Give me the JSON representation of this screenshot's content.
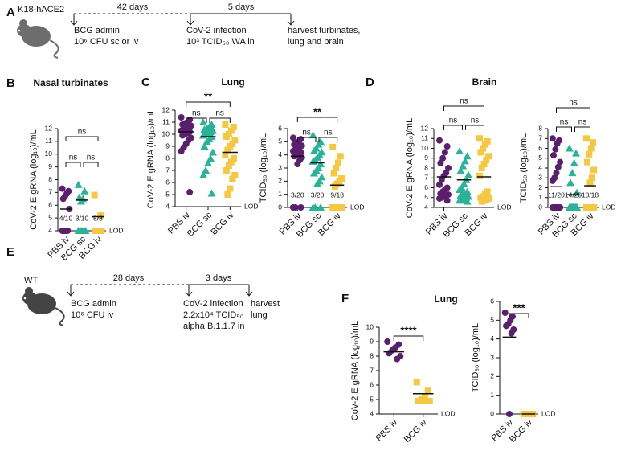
{
  "panel_letters": [
    "A",
    "B",
    "C",
    "D",
    "E",
    "F"
  ],
  "panel_titles": [
    "Nasal turbinates",
    "Lung",
    "Brain",
    "Lung"
  ],
  "timeline_a": {
    "strain": "K18-hACE2",
    "interval_1": "42 days",
    "interval_2": "5 days",
    "step_1": [
      "BCG admin",
      "10⁶ CFU sc or iv"
    ],
    "step_2": [
      "CoV-2 infection",
      "10³ TCID₅₀ WA in"
    ],
    "step_3": [
      "harvest turbinates,",
      "lung and brain"
    ]
  },
  "timeline_e": {
    "strain": "WT",
    "interval_1": "28 days",
    "interval_2": "3 days",
    "step_1": [
      "BCG admin",
      "10⁶ CFU iv"
    ],
    "step_2": [
      "CoV-2 infection",
      "2.2x10⁴ TCID₅₀",
      "alpha B.1.1.7 in"
    ],
    "step_3": [
      "harvest",
      "lung"
    ]
  },
  "chart_data": [
    {
      "type": "dot",
      "y_label": "CoV-2 E gRNA (log₁₀)/mL",
      "ylim": [
        4,
        12
      ],
      "yticks": [
        4,
        5,
        6,
        7,
        8,
        9,
        10,
        11,
        12
      ],
      "categories": [
        "PBS iv",
        "BCG sc",
        "BCG iv"
      ],
      "lod_label": "LOD",
      "significance": [
        "ns",
        "ns",
        "ns"
      ],
      "count_labels": [
        "4/10",
        "3/10",
        "5/8"
      ],
      "groups": [
        {
          "color": "#5a1f6e",
          "marker": "circle",
          "mean": 5.7,
          "values": [
            7.3,
            7.1,
            6.9,
            6.7,
            6.5,
            5.7,
            4,
            4,
            4,
            4
          ]
        },
        {
          "color": "#2bb39a",
          "marker": "triangle",
          "mean": 6.4,
          "values": [
            7.6,
            7.1,
            6.5,
            6.3,
            6.6,
            4,
            4,
            4,
            4,
            4
          ]
        },
        {
          "color": "#f6c842",
          "marker": "square",
          "mean": 5.1,
          "values": [
            6.8,
            5.2,
            4,
            4,
            4,
            4,
            4,
            4
          ]
        }
      ]
    },
    {
      "type": "dot",
      "y_label": "CoV-2 E gRNA (log₁₀)/mL",
      "ylim": [
        4,
        12
      ],
      "yticks": [
        4,
        5,
        6,
        7,
        8,
        9,
        10,
        11,
        12
      ],
      "categories": [
        "PBS iv",
        "BCG sc",
        "BCG iv"
      ],
      "lod_label": "LOD",
      "significance": [
        "**",
        "ns",
        "ns"
      ],
      "groups": [
        {
          "color": "#5a1f6e",
          "marker": "circle",
          "mean": 10.2,
          "values": [
            11.4,
            11.2,
            11.0,
            10.9,
            10.8,
            10.7,
            10.6,
            10.5,
            10.4,
            10.3,
            10.2,
            10.1,
            10.0,
            9.9,
            9.7,
            9.5,
            9.2,
            8.9,
            8.6,
            5.2
          ]
        },
        {
          "color": "#2bb39a",
          "marker": "triangle",
          "mean": 9.8,
          "values": [
            11.0,
            10.8,
            10.6,
            10.5,
            10.4,
            10.3,
            10.2,
            10.1,
            10.0,
            9.9,
            9.8,
            9.6,
            9.4,
            9.0,
            8.5,
            8.0,
            7.6,
            7.0,
            6.6,
            5.1
          ]
        },
        {
          "color": "#f6c842",
          "marker": "square",
          "mean": 8.5,
          "values": [
            10.8,
            10.6,
            10.3,
            10.0,
            9.8,
            9.5,
            9.2,
            9.0,
            8.7,
            8.3,
            8.0,
            7.7,
            7.4,
            7.0,
            6.6,
            6.3,
            5.5,
            5.0
          ]
        }
      ]
    },
    {
      "type": "dot",
      "y_label": "TCID₅₀ (log₁₀)/mL",
      "ylim": [
        0,
        6
      ],
      "yticks": [
        0,
        1,
        2,
        3,
        4,
        5,
        6
      ],
      "categories": [
        "PBS iv",
        "BCG sc",
        "BCG iv"
      ],
      "lod_label": "LOD",
      "significance": [
        "**",
        "ns",
        "ns"
      ],
      "count_labels": [
        "3/20",
        "3/20",
        "9/18"
      ],
      "groups": [
        {
          "color": "#5a1f6e",
          "marker": "circle",
          "mean": 3.9,
          "values": [
            5.3,
            5.2,
            5.0,
            4.9,
            4.8,
            4.7,
            4.6,
            4.5,
            4.4,
            4.3,
            4.2,
            4.1,
            4.0,
            3.9,
            3.8,
            3.6,
            3.3,
            0,
            0,
            0
          ]
        },
        {
          "color": "#2bb39a",
          "marker": "triangle",
          "mean": 3.4,
          "values": [
            5.5,
            5.0,
            4.8,
            4.5,
            4.3,
            4.2,
            4.0,
            3.8,
            3.6,
            3.5,
            3.3,
            3.0,
            2.8,
            2.6,
            2.3,
            2.0,
            1.8,
            0,
            0,
            0
          ]
        },
        {
          "color": "#f6c842",
          "marker": "square",
          "mean": 1.7,
          "values": [
            4.6,
            3.9,
            3.4,
            3.0,
            2.6,
            2.2,
            2.0,
            1.8,
            1.6,
            0,
            0,
            0,
            0,
            0,
            0,
            0,
            0,
            0
          ]
        }
      ]
    },
    {
      "type": "dot",
      "y_label": "CoV-2 E gRNA (log₁₀)/mL",
      "ylim": [
        4,
        12
      ],
      "yticks": [
        4,
        5,
        6,
        7,
        8,
        9,
        10,
        11,
        12
      ],
      "categories": [
        "PBS iv",
        "BCG sc",
        "BCG iv"
      ],
      "lod_label": "LOD",
      "significance": [
        "ns",
        "ns",
        "ns"
      ],
      "groups": [
        {
          "color": "#5a1f6e",
          "marker": "circle",
          "mean": 7.1,
          "values": [
            10.8,
            10.2,
            9.6,
            9.0,
            8.5,
            8.0,
            7.5,
            7.2,
            6.8,
            6.3,
            6.0,
            5.8,
            5.6,
            5.4,
            5.3,
            5.2,
            5.1,
            5.0,
            4.9,
            4.7
          ]
        },
        {
          "color": "#2bb39a",
          "marker": "triangle",
          "mean": 6.8,
          "values": [
            9.7,
            9.2,
            8.7,
            8.2,
            7.7,
            7.3,
            6.8,
            6.4,
            6.0,
            5.8,
            5.6,
            5.4,
            5.3,
            5.2,
            5.1,
            5.0,
            4.9,
            4.8,
            4.7,
            4.6
          ]
        },
        {
          "color": "#f6c842",
          "marker": "square",
          "mean": 7.1,
          "values": [
            11.0,
            10.7,
            10.4,
            10.0,
            9.6,
            9.2,
            8.8,
            8.4,
            8.0,
            7.2,
            5.6,
            5.3,
            5.1,
            5.0,
            4.9,
            4.8,
            4.7,
            4.6
          ]
        }
      ]
    },
    {
      "type": "dot",
      "y_label": "TCID₅₀ (log₁₀)/mL",
      "ylim": [
        0,
        8
      ],
      "yticks": [
        0,
        1,
        2,
        3,
        4,
        5,
        6,
        7,
        8
      ],
      "categories": [
        "PBS iv",
        "BCG sc",
        "BCG iv"
      ],
      "lod_label": "LOD",
      "significance": [
        "ns",
        "ns",
        "ns"
      ],
      "count_labels": [
        "11/20",
        "14/20",
        "10/18"
      ],
      "groups": [
        {
          "color": "#5a1f6e",
          "marker": "circle",
          "mean": 2.1,
          "values": [
            7.0,
            6.8,
            6.5,
            5.9,
            5.3,
            4.6,
            4.1,
            3.5,
            3.0,
            2.7,
            0,
            0,
            0,
            0,
            0,
            0,
            0,
            0,
            0,
            0
          ]
        },
        {
          "color": "#2bb39a",
          "marker": "triangle",
          "mean": 1.3,
          "values": [
            6.0,
            5.5,
            4.5,
            3.5,
            2.5,
            1.5,
            0,
            0,
            0,
            0,
            0,
            0,
            0,
            0,
            0,
            0,
            0,
            0,
            0,
            0
          ]
        },
        {
          "color": "#f6c842",
          "marker": "square",
          "mean": 2.2,
          "values": [
            7.0,
            6.6,
            6.0,
            5.4,
            4.6,
            3.8,
            3.0,
            2.5,
            0,
            0,
            0,
            0,
            0,
            0,
            0,
            0,
            0,
            0
          ]
        }
      ]
    },
    {
      "type": "dot",
      "y_label": "CoV-2 E gRNA (log₁₀)/mL",
      "ylim": [
        4,
        10
      ],
      "yticks": [
        4,
        5,
        6,
        7,
        8,
        9,
        10
      ],
      "categories": [
        "PBS iv",
        "BCG iv"
      ],
      "lod_label": "LOD",
      "significance": [
        "****"
      ],
      "groups": [
        {
          "color": "#5a1f6e",
          "marker": "circle",
          "mean": 8.3,
          "values": [
            9.0,
            8.8,
            8.6,
            8.4,
            8.2,
            8.0,
            7.8
          ]
        },
        {
          "color": "#f6c842",
          "marker": "square",
          "mean": 5.4,
          "values": [
            6.2,
            5.6,
            5.2,
            5.0,
            4.9,
            4.9,
            4.9,
            4.9
          ]
        }
      ]
    },
    {
      "type": "dot",
      "y_label": "TCID₅₀ (log₁₀)/mL",
      "ylim": [
        0,
        6
      ],
      "yticks": [
        0,
        1,
        2,
        3,
        4,
        5,
        6
      ],
      "categories": [
        "PBS iv",
        "BCG iv"
      ],
      "lod_label": "LOD",
      "significance": [
        "***"
      ],
      "groups": [
        {
          "color": "#5a1f6e",
          "marker": "circle",
          "mean": 4.1,
          "values": [
            5.4,
            5.2,
            5.0,
            4.8,
            4.7,
            4.5,
            4.3,
            0
          ]
        },
        {
          "color": "#f6c842",
          "marker": "square",
          "mean": 0,
          "values": [
            0,
            0,
            0,
            0,
            0,
            0,
            0,
            0
          ]
        }
      ]
    }
  ]
}
